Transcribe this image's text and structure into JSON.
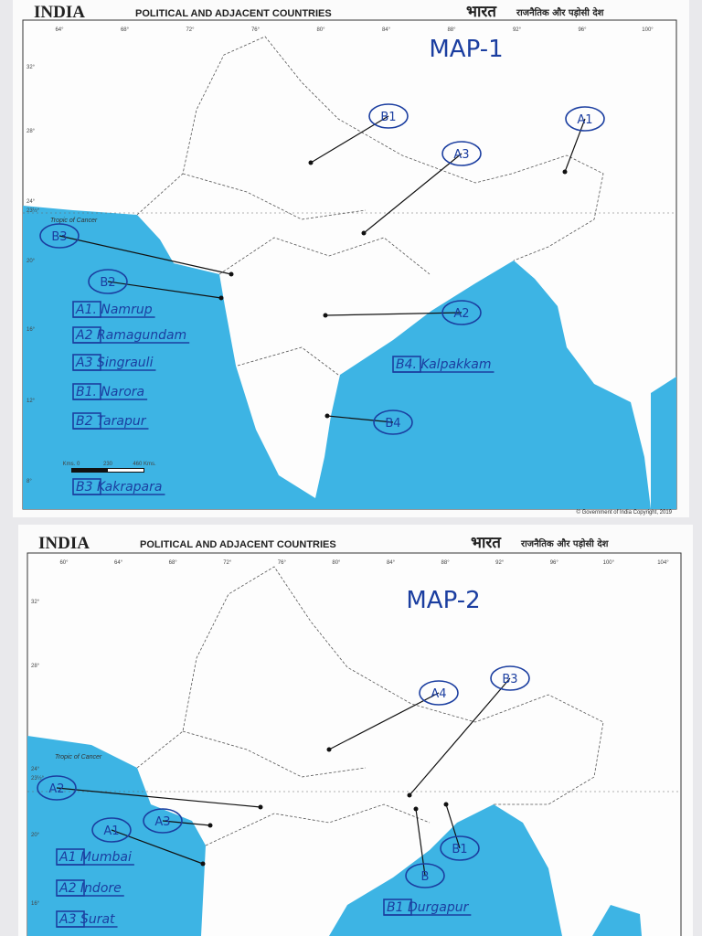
{
  "maps": [
    {
      "header": {
        "title": "INDIA",
        "subtitle": "POLITICAL AND ADJACENT COUNTRIES",
        "hindi_title": "भारत",
        "hindi_subtitle": "राजनैतिक और पड़ोसी देश"
      },
      "map_label": "MAP-1",
      "tropic": "Tropic of Cancer",
      "longitudes": [
        "64°",
        "68°",
        "72°",
        "76°",
        "80°",
        "84°",
        "88°",
        "92°",
        "96°",
        "100°"
      ],
      "latitudes": [
        "32°",
        "28°",
        "24°",
        "23½°",
        "20°",
        "16°",
        "12°",
        "8°"
      ],
      "scale": [
        "Kms. 0",
        "230",
        "460 Kms."
      ],
      "copyright": "© Government of India Copyright, 2019",
      "markers": [
        "B1",
        "A1",
        "A3",
        "B3",
        "B2",
        "A2",
        "B4"
      ],
      "legend": [
        "A1. Namrup",
        "A2 Ramagundam",
        "A3 Singrauli",
        "B1. Narora",
        "B2 Tarapur",
        "B3 Kakrapara",
        "B4. Kalpakkam"
      ]
    },
    {
      "header": {
        "title": "INDIA",
        "subtitle": "POLITICAL AND ADJACENT COUNTRIES",
        "hindi_title": "भारत",
        "hindi_subtitle": "राजनैतिक और पड़ोसी देश"
      },
      "map_label": "MAP-2",
      "tropic": "Tropic of Cancer",
      "longitudes": [
        "60°",
        "64°",
        "68°",
        "72°",
        "76°",
        "80°",
        "84°",
        "88°",
        "92°",
        "96°",
        "100°",
        "104°"
      ],
      "latitudes": [
        "32°",
        "28°",
        "24°",
        "23½°",
        "20°",
        "16°"
      ],
      "markers": [
        "A4",
        "B3",
        "A2",
        "A3",
        "A1",
        "B1",
        "B"
      ],
      "legend": [
        "A1 Mumbai",
        "A2 Indore",
        "A3 Surat",
        "B1 Durgapur"
      ]
    }
  ]
}
